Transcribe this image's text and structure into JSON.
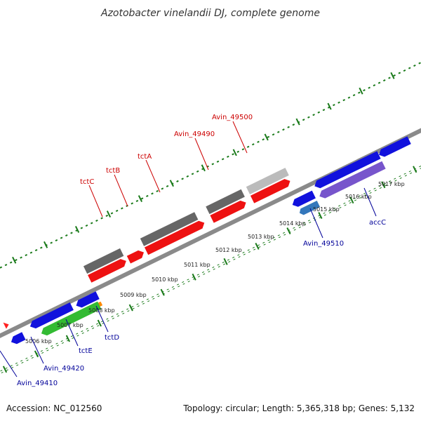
{
  "title": "Azotobacter vinelandii DJ, complete genome",
  "accession": "Accession: NC_012560",
  "topology": "Topology: circular; Length: 5,365,318 bp; Genes: 5,132",
  "colors": {
    "forward_label": "#cc0000",
    "reverse_label": "#000099",
    "backbone": "#8a8a8a",
    "tick": "#1a7a1a"
  },
  "scale": [
    "5006 kbp",
    "5007 kbp",
    "5008 kbp",
    "5009 kbp",
    "5010 kbp",
    "5011 kbp",
    "5012 kbp",
    "5013 kbp",
    "5014 kbp",
    "5015 kbp",
    "5016 kbp",
    "5017 kbp"
  ],
  "labels_top": [
    "tctC",
    "tctB",
    "tctA",
    "Avin_49490",
    "Avin_49500"
  ],
  "labels_bottom": [
    "Avin_49410",
    "Avin_49420",
    "tctE",
    "tctD",
    "Avin_49510",
    "accC"
  ]
}
